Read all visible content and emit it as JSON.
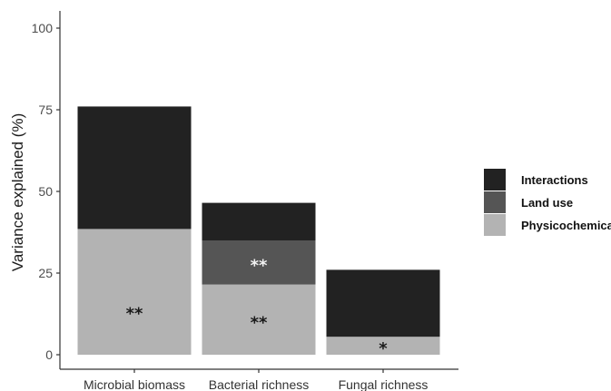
{
  "chart_data": {
    "type": "bar",
    "stacked": true,
    "title": "",
    "xlabel": "",
    "ylabel": "Variance explained (%)",
    "ylim": [
      0,
      100
    ],
    "yticks": [
      0,
      25,
      50,
      75,
      100
    ],
    "grid": false,
    "legend_position": "right",
    "categories": [
      "Microbial biomass",
      "Bacterial richness",
      "Fungal richness"
    ],
    "series": [
      {
        "name": "Physicochemical",
        "color": "#b3b3b3",
        "values": [
          38.5,
          21.5,
          5.5
        ],
        "annotations": [
          "**",
          "**",
          "*"
        ],
        "annotation_color": "#1a1a1a"
      },
      {
        "name": "Land use",
        "color": "#555555",
        "values": [
          0,
          13.5,
          0
        ],
        "annotations": [
          "",
          "**",
          ""
        ],
        "annotation_color": "#f2f2f2"
      },
      {
        "name": "Interactions",
        "color": "#222222",
        "values": [
          37.5,
          11.5,
          20.5
        ],
        "annotations": [
          "",
          "",
          ""
        ],
        "annotation_color": "#f2f2f2"
      }
    ],
    "legend_order": [
      "Interactions",
      "Land use",
      "Physicochemical"
    ]
  }
}
